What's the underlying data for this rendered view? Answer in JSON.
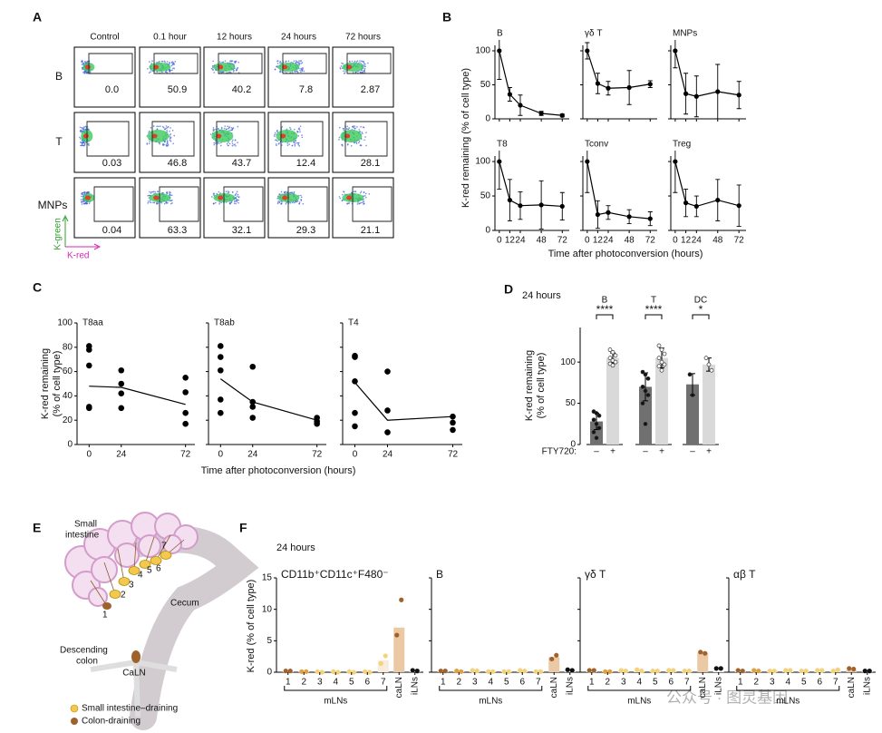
{
  "panels": [
    "A",
    "B",
    "C",
    "D",
    "E",
    "F"
  ],
  "flow": {
    "columns": [
      "Control",
      "0.1 hour",
      "12 hours",
      "24 hours",
      "72 hours"
    ],
    "rows": [
      "B",
      "T",
      "MNPs"
    ],
    "values": [
      [
        "0.0",
        "50.9",
        "40.2",
        "7.8",
        "2.87"
      ],
      [
        "0.03",
        "46.8",
        "43.7",
        "12.4",
        "28.1"
      ],
      [
        "0.04",
        "63.3",
        "32.1",
        "29.3",
        "21.1"
      ]
    ],
    "y_label": "K-green",
    "x_label": "K-red"
  },
  "diagram": {
    "small_intestine": [
      "Small",
      "intestine"
    ],
    "cecum": "Cecum",
    "descending_colon": [
      "Descending",
      "colon"
    ],
    "caln": "CaLN",
    "nodes": [
      "1",
      "2",
      "3",
      "4",
      "5",
      "6",
      "7"
    ],
    "legend": [
      "Small intestine–draining",
      "Colon-draining"
    ]
  },
  "watermark": "公众号 · 图灵基因",
  "chart_data": [
    {
      "type": "line",
      "title": "B",
      "ylabel": "K-red remaining (% of cell type)",
      "color": "#000000",
      "x": [
        0,
        12,
        24,
        48,
        72
      ],
      "values": [
        100,
        36,
        20,
        8,
        5
      ],
      "errors": [
        42,
        10,
        15,
        3,
        2
      ],
      "xlim": [
        -5,
        80
      ],
      "ylim": [
        0,
        108
      ],
      "xticks": [
        0,
        12,
        24,
        48,
        72
      ],
      "yticks": [
        0,
        50,
        100
      ]
    },
    {
      "type": "line",
      "title": "γδ T",
      "color": "#000000",
      "x": [
        0,
        12,
        24,
        48,
        72
      ],
      "values": [
        100,
        52,
        45,
        46,
        51
      ],
      "errors": [
        12,
        15,
        10,
        25,
        5
      ],
      "xlim": [
        -5,
        80
      ],
      "ylim": [
        0,
        108
      ],
      "xticks": [
        0,
        12,
        24,
        48,
        72
      ],
      "yticks": [
        0,
        50,
        100
      ]
    },
    {
      "type": "line",
      "title": "MNPs",
      "color": "#000000",
      "x": [
        0,
        12,
        24,
        48,
        72
      ],
      "values": [
        100,
        37,
        33,
        40,
        35
      ],
      "errors": [
        25,
        30,
        30,
        40,
        20
      ],
      "xlim": [
        -5,
        80
      ],
      "ylim": [
        0,
        108
      ],
      "xticks": [
        0,
        12,
        24,
        48,
        72
      ],
      "yticks": [
        0,
        50,
        100
      ]
    },
    {
      "type": "line",
      "title": "T8",
      "color": "#000000",
      "x": [
        0,
        12,
        24,
        48,
        72
      ],
      "values": [
        100,
        44,
        36,
        37,
        35
      ],
      "errors": [
        40,
        30,
        20,
        35,
        20
      ],
      "xlim": [
        -5,
        80
      ],
      "ylim": [
        0,
        108
      ],
      "xticks": [
        0,
        12,
        24,
        48,
        72
      ],
      "yticks": [
        0,
        50,
        100
      ]
    },
    {
      "type": "line",
      "title": "Tconv",
      "xlabel": "Time after photoconversion (hours)",
      "color": "#000000",
      "x": [
        0,
        12,
        24,
        48,
        72
      ],
      "values": [
        100,
        23,
        26,
        20,
        17
      ],
      "errors": [
        45,
        20,
        10,
        10,
        10
      ],
      "xlim": [
        -5,
        80
      ],
      "ylim": [
        0,
        108
      ],
      "xticks": [
        0,
        12,
        24,
        48,
        72
      ],
      "yticks": [
        0,
        50,
        100
      ]
    },
    {
      "type": "line",
      "title": "Treg",
      "color": "#000000",
      "x": [
        0,
        12,
        24,
        48,
        72
      ],
      "values": [
        100,
        40,
        35,
        44,
        36
      ],
      "errors": [
        45,
        20,
        15,
        30,
        30
      ],
      "xlim": [
        -5,
        80
      ],
      "ylim": [
        0,
        108
      ],
      "xticks": [
        0,
        12,
        24,
        48,
        72
      ],
      "yticks": [
        0,
        50,
        100
      ]
    },
    {
      "type": "scatter",
      "title": "T8aa",
      "ylabel": [
        "K-red remaining",
        "(% of cell type)"
      ],
      "color": "#000000",
      "points": {
        "x": [
          0,
          0,
          0,
          0,
          0,
          24,
          24,
          24,
          24,
          72,
          72,
          72,
          72
        ],
        "y": [
          81,
          78,
          65,
          30,
          31,
          61,
          50,
          42,
          30,
          55,
          43,
          26,
          17
        ]
      },
      "x": [
        0,
        24,
        72
      ],
      "values": [
        48,
        47,
        33
      ],
      "xlim": [
        -9,
        79
      ],
      "ylim": [
        0,
        100
      ],
      "xticks": [
        0,
        24,
        72
      ],
      "yticks": [
        0,
        20,
        40,
        60,
        80,
        100
      ]
    },
    {
      "type": "scatter",
      "title": "T8ab",
      "xlabel": "Time after photoconversion (hours)",
      "color": "#000000",
      "points": {
        "x": [
          0,
          0,
          0,
          0,
          0,
          24,
          24,
          24,
          24,
          72,
          72,
          72
        ],
        "y": [
          81,
          72,
          61,
          37,
          26,
          64,
          35,
          31,
          22,
          22,
          19,
          17
        ]
      },
      "x": [
        0,
        24,
        72
      ],
      "values": [
        54,
        35,
        20
      ],
      "xlim": [
        -9,
        79
      ],
      "ylim": [
        0,
        100
      ],
      "xticks": [
        0,
        24,
        72
      ],
      "yticks": [
        0,
        20,
        40,
        60,
        80,
        100
      ]
    },
    {
      "type": "scatter",
      "title": "T4",
      "color": "#000000",
      "points": {
        "x": [
          0,
          0,
          0,
          0,
          0,
          24,
          24,
          24,
          72,
          72,
          72
        ],
        "y": [
          73,
          72,
          52,
          26,
          15,
          60,
          28,
          10,
          23,
          18,
          12
        ]
      },
      "x": [
        0,
        24,
        72
      ],
      "values": [
        51,
        20,
        23
      ],
      "xlim": [
        -9,
        79
      ],
      "ylim": [
        0,
        100
      ],
      "xticks": [
        0,
        24,
        72
      ],
      "yticks": [
        0,
        20,
        40,
        60,
        80,
        100
      ]
    },
    {
      "type": "bar",
      "title": "24 hours",
      "ylabel": [
        "K-red remaining",
        "(% of cell type)"
      ],
      "factor_label": "FTY720:",
      "categories": [
        "B",
        "T",
        "DC"
      ],
      "significance": [
        "****",
        "****",
        "*"
      ],
      "series": [
        {
          "name": "–",
          "color": "#707070",
          "values": [
            28,
            70,
            73
          ],
          "errors": [
            10,
            17,
            13
          ],
          "points": [
            [
              40,
              38,
              35,
              30,
              25,
              20,
              15,
              8
            ],
            [
              88,
              85,
              80,
              70,
              65,
              60,
              50,
              25
            ],
            [
              85,
              60
            ]
          ]
        },
        {
          "name": "+",
          "color": "#d9d9d9",
          "values": [
            105,
            105,
            97
          ],
          "errors": [
            6,
            12,
            8
          ],
          "points": [
            [
              115,
              112,
              108,
              105,
              102,
              100,
              98,
              96
            ],
            [
              120,
              115,
              110,
              105,
              100,
              97,
              95,
              90
            ],
            [
              105,
              97,
              90
            ]
          ]
        }
      ],
      "ylim": [
        0,
        142
      ],
      "yticks": [
        0,
        50,
        100
      ]
    },
    {
      "type": "dotbar",
      "subtitle": "24 hours",
      "title": "CD11b⁺CD11c⁺F480⁻",
      "ylabel": "K-red (% of cell type)",
      "group_label": "mLNs",
      "categories": [
        "1",
        "2",
        "3",
        "4",
        "5",
        "6",
        "7",
        "caLN",
        "iLNs"
      ],
      "values": [
        0.1,
        0.1,
        0.05,
        0.05,
        0.05,
        0.05,
        1.9,
        7.1,
        0.2
      ],
      "points": [
        [
          0.2,
          0.2
        ],
        [
          0.1,
          0.1
        ],
        [
          0.1,
          0
        ],
        [
          0.1,
          0
        ],
        [
          0.1,
          0
        ],
        [
          0.1,
          0
        ],
        [
          1.4,
          2.6
        ],
        [
          5.9,
          11.5
        ],
        [
          0.3,
          0.2
        ]
      ],
      "bar_colors": [
        "#f7ebd9",
        "#f7ebd9",
        "#f7ebd9",
        "#f7ebd9",
        "#f7ebd9",
        "#f7ebd9",
        "#f7ebd9",
        "#ecc9a5",
        "#eeeeee"
      ],
      "dot_colors": [
        "#a0622d",
        "#e0a040",
        "#f3d27a",
        "#f3d27a",
        "#f3d27a",
        "#f3d27a",
        "#f3d27a",
        "#a0622d",
        "#111111"
      ],
      "ylim": [
        0,
        15
      ],
      "yticks": [
        0,
        5,
        10,
        15
      ]
    },
    {
      "type": "dotbar",
      "title": "B",
      "group_label": "mLNs",
      "categories": [
        "1",
        "2",
        "3",
        "4",
        "5",
        "6",
        "7",
        "caLN",
        "iLNs"
      ],
      "values": [
        0.1,
        0.1,
        0.2,
        0.1,
        0.1,
        0.2,
        0.1,
        2.4,
        0.3
      ],
      "points": [
        [
          0.2,
          0.2
        ],
        [
          0.2,
          0.1
        ],
        [
          0.3,
          0.2
        ],
        [
          0.1,
          0.1
        ],
        [
          0.1,
          0.1
        ],
        [
          0.3,
          0.2
        ],
        [
          0.1,
          0.1
        ],
        [
          2.1,
          2.7
        ],
        [
          0.4,
          0.3
        ]
      ],
      "bar_colors": [
        "#f7ebd9",
        "#f7ebd9",
        "#f7ebd9",
        "#f7ebd9",
        "#f7ebd9",
        "#f7ebd9",
        "#f7ebd9",
        "#ecc9a5",
        "#eeeeee"
      ],
      "dot_colors": [
        "#a0622d",
        "#e0a040",
        "#f3d27a",
        "#f3d27a",
        "#f3d27a",
        "#f3d27a",
        "#f3d27a",
        "#a0622d",
        "#111111"
      ],
      "ylim": [
        0,
        15
      ],
      "yticks": [
        0,
        5,
        10,
        15
      ]
    },
    {
      "type": "dotbar",
      "title": "γδ T",
      "group_label": "mLNs",
      "categories": [
        "1",
        "2",
        "3",
        "4",
        "5",
        "6",
        "7",
        "caLN",
        "iLNs"
      ],
      "values": [
        0.2,
        0.1,
        0.2,
        0.2,
        0.2,
        0.2,
        0.2,
        3.1,
        0.1
      ],
      "points": [
        [
          0.3,
          0.3
        ],
        [
          0.1,
          0.1
        ],
        [
          0.3,
          0.2
        ],
        [
          0.4,
          0.2
        ],
        [
          0.2,
          0.2
        ],
        [
          0.3,
          0.3
        ],
        [
          0.2,
          0.2
        ],
        [
          3.2,
          3.0
        ],
        [
          0.6,
          0.6
        ]
      ],
      "bar_colors": [
        "#f7ebd9",
        "#f7ebd9",
        "#f7ebd9",
        "#f7ebd9",
        "#f7ebd9",
        "#f7ebd9",
        "#f7ebd9",
        "#ecc9a5",
        "#eeeeee"
      ],
      "dot_colors": [
        "#a0622d",
        "#e0a040",
        "#f3d27a",
        "#f3d27a",
        "#f3d27a",
        "#f3d27a",
        "#f3d27a",
        "#a0622d",
        "#111111"
      ],
      "ylim": [
        0,
        15
      ],
      "yticks": [
        0,
        5,
        10,
        15
      ]
    },
    {
      "type": "dotbar",
      "title": "αβ T",
      "group_label": "mLNs",
      "categories": [
        "1",
        "2",
        "3",
        "4",
        "5",
        "6",
        "7",
        "caLN",
        "iLNs"
      ],
      "values": [
        0.2,
        0.2,
        0.2,
        0.2,
        0.2,
        0.2,
        0.2,
        0.3,
        0.1
      ],
      "points": [
        [
          0.3,
          0.2
        ],
        [
          0.3,
          0.2
        ],
        [
          0.2,
          0.2
        ],
        [
          0.3,
          0.3
        ],
        [
          0.2,
          0.2
        ],
        [
          0.3,
          0.3
        ],
        [
          0.2,
          0.4
        ],
        [
          0.6,
          0.5
        ],
        [
          0.2,
          0.2
        ]
      ],
      "bar_colors": [
        "#f7ebd9",
        "#f7ebd9",
        "#f7ebd9",
        "#f7ebd9",
        "#f7ebd9",
        "#f7ebd9",
        "#f7ebd9",
        "#ecc9a5",
        "#eeeeee"
      ],
      "dot_colors": [
        "#a0622d",
        "#e0a040",
        "#f3d27a",
        "#f3d27a",
        "#f3d27a",
        "#f3d27a",
        "#f3d27a",
        "#a0622d",
        "#111111"
      ],
      "ylim": [
        0,
        15
      ],
      "yticks": [
        0,
        5,
        10,
        15
      ]
    }
  ]
}
